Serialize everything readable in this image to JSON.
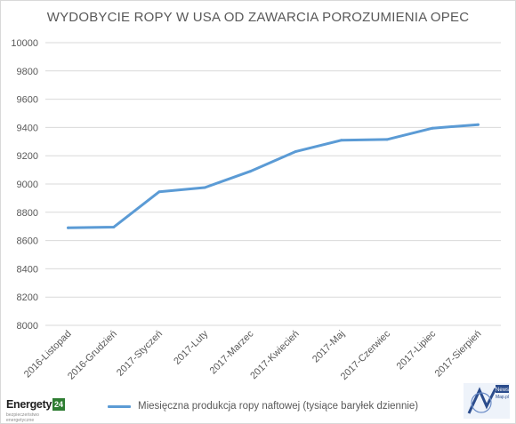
{
  "chart_data": {
    "type": "line",
    "title": "WYDOBYCIE ROPY W USA OD ZAWARCIA POROZUMIENIA OPEC",
    "categories": [
      "2016-Listopad",
      "2016-Grudzień",
      "2017-Styczeń",
      "2017-Luty",
      "2017-Marzec",
      "2017-Kwiecień",
      "2017-Maj",
      "2017-Czerwiec",
      "2017-Lipiec",
      "2017-Sierpień"
    ],
    "series": [
      {
        "name": "Miesięczna produkcja ropy naftowej (tysiące baryłek dziennie)",
        "values": [
          8690,
          8695,
          8945,
          8975,
          9090,
          9230,
          9310,
          9315,
          9395,
          9420
        ]
      }
    ],
    "xlabel": "",
    "ylabel": "",
    "ylim": [
      8000,
      10000
    ],
    "yticks": [
      8000,
      8200,
      8400,
      8600,
      8800,
      9000,
      9200,
      9400,
      9600,
      9800,
      10000
    ],
    "grid": true,
    "legend_position": "bottom",
    "line_color": "#5b9bd5"
  },
  "logos": {
    "left": {
      "brand": "Energetyka",
      "badge": "24",
      "tagline": "bezpieczeństwo energetyczne"
    },
    "right": {
      "top": "News",
      "bottom": "Map.pl"
    }
  }
}
